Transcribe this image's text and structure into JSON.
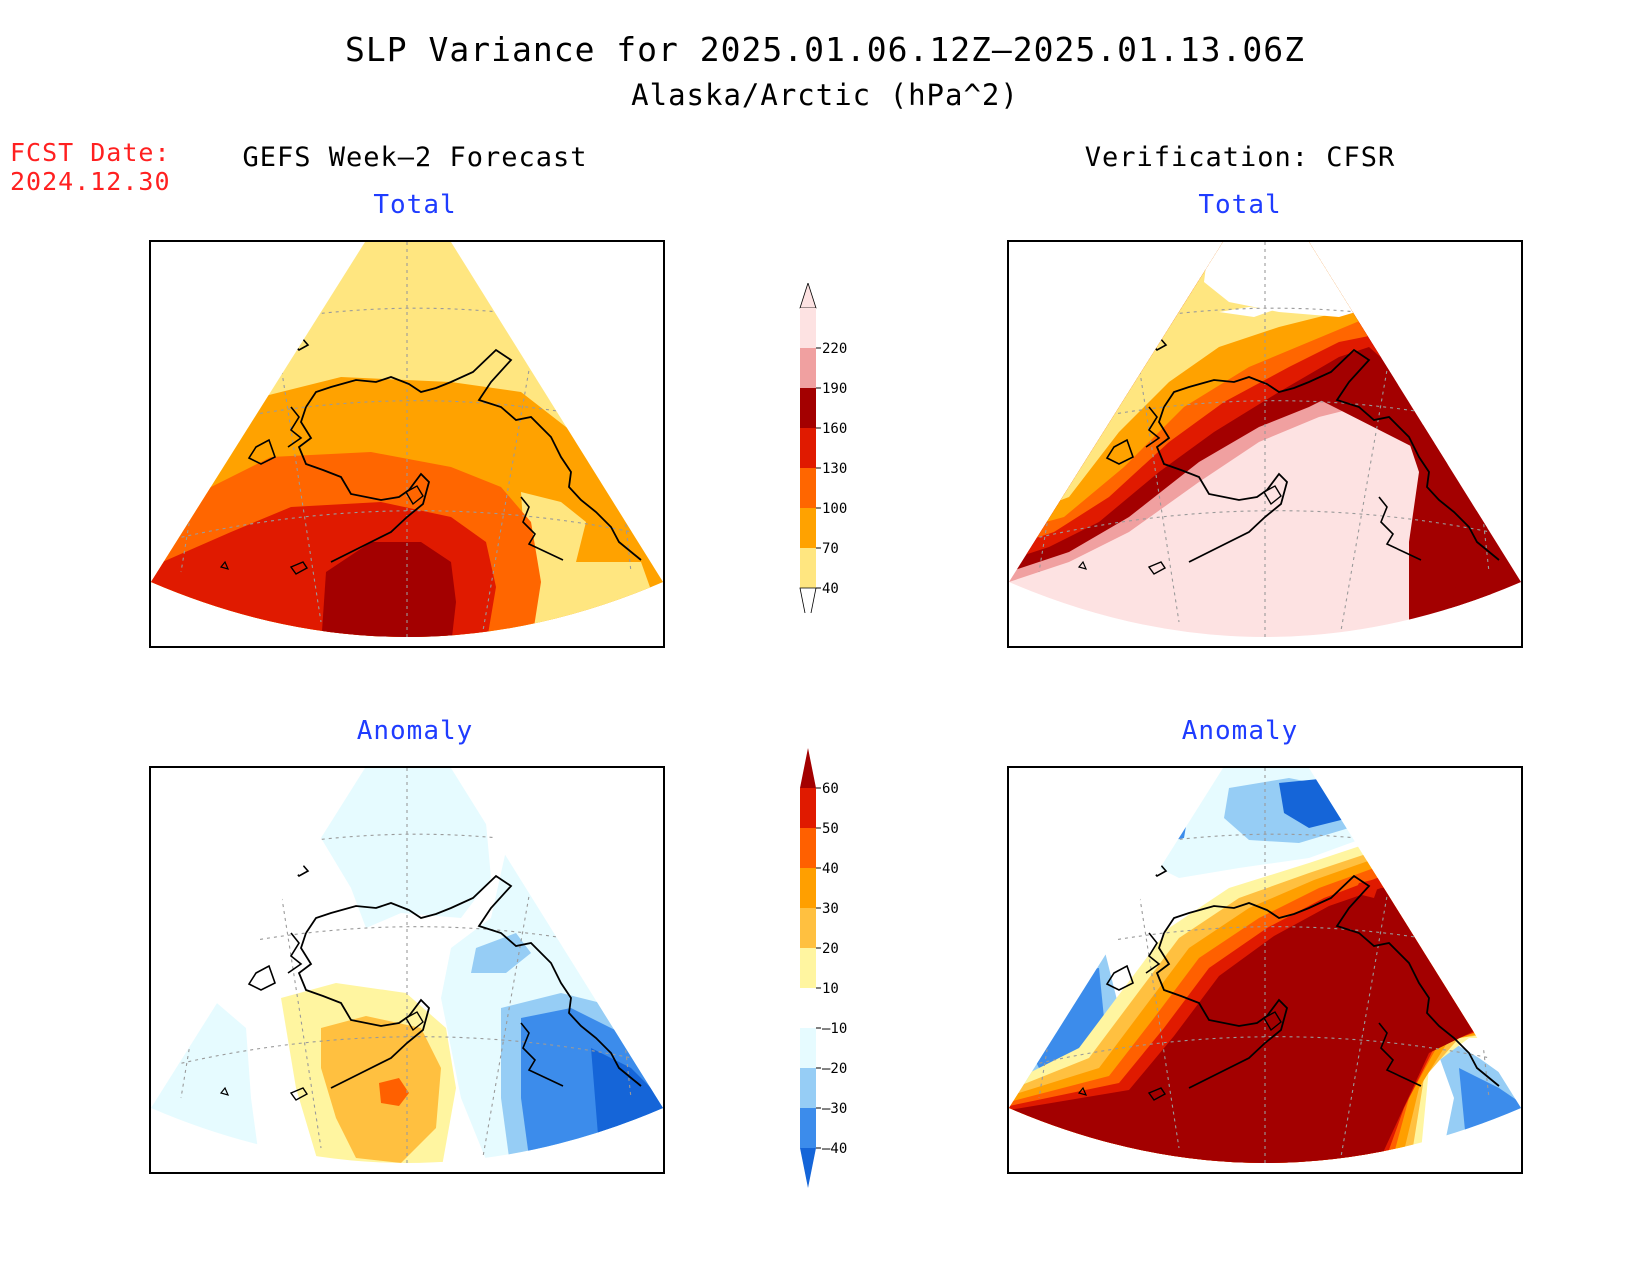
{
  "title": "SLP Variance for 2025.01.06.12Z–2025.01.13.06Z",
  "subtitle": "Alaska/Arctic (hPa^2)",
  "forecast_date": {
    "label": "FCST Date:",
    "value": "2024.12.30"
  },
  "columns": [
    {
      "heading": "GEFS Week–2 Forecast"
    },
    {
      "heading": "Verification: CFSR"
    }
  ],
  "panels": {
    "fcst_total": {
      "title": "Total"
    },
    "verif_total": {
      "title": "Total"
    },
    "fcst_anomaly": {
      "title": "Anomaly"
    },
    "verif_anomaly": {
      "title": "Anomaly"
    }
  },
  "colorbars": {
    "total": {
      "levels": [
        "40",
        "70",
        "100",
        "130",
        "160",
        "190",
        "220"
      ],
      "colors": [
        "#ffe680",
        "#ffa200",
        "#ff6600",
        "#e01a00",
        "#a30000",
        "#f0a0a0",
        "#fde2e2"
      ]
    },
    "anomaly": {
      "levels": [
        "–40",
        "–30",
        "–20",
        "–10",
        "10",
        "20",
        "30",
        "40",
        "50",
        "60"
      ],
      "colors": [
        "#1565d8",
        "#3c8ceb",
        "#96cdf5",
        "#e6fbff",
        "#ffffff",
        "#fff5a0",
        "#ffc040",
        "#ff9f00",
        "#ff6000",
        "#e01a00",
        "#a30000"
      ]
    }
  }
}
